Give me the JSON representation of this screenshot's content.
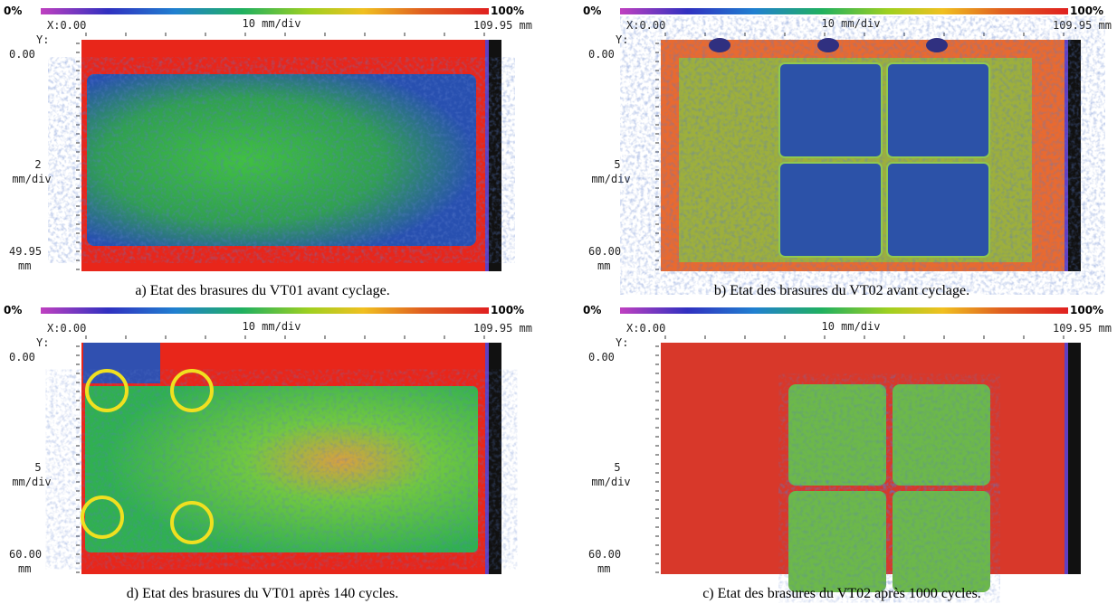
{
  "panels": [
    {
      "colorbar_min": "0%",
      "colorbar_max": "100%",
      "x_start": "X:0.00",
      "x_scale": "10 mm/div",
      "x_end": "109.95 mm",
      "y_label": "Y:",
      "y_start": "0.00",
      "y_scale_value": "2",
      "y_scale_unit": "mm/div",
      "y_end": "49.95",
      "y_end_unit": "mm",
      "caption": "a) Etat des brasures du VT01 avant cyclage."
    },
    {
      "colorbar_min": "0%",
      "colorbar_max": "100%",
      "x_start": "X:0.00",
      "x_scale": "10 mm/div",
      "x_end": "109.95 mm",
      "y_label": "Y:",
      "y_start": "0.00",
      "y_scale_value": "5",
      "y_scale_unit": "mm/div",
      "y_end": "60.00",
      "y_end_unit": "mm",
      "caption": "b) Etat des brasures du VT02 avant cyclage."
    },
    {
      "colorbar_min": "0%",
      "colorbar_max": "100%",
      "x_start": "X:0.00",
      "x_scale": "10 mm/div",
      "x_end": "109.95 mm",
      "y_label": "Y:",
      "y_start": "0.00",
      "y_scale_value": "5",
      "y_scale_unit": "mm/div",
      "y_end": "60.00",
      "y_end_unit": "mm",
      "caption": "d) Etat des brasures du VT01 après 140 cycles."
    },
    {
      "colorbar_min": "0%",
      "colorbar_max": "100%",
      "x_start": "X:0.00",
      "x_scale": "10 mm/div",
      "x_end": "109.95 mm",
      "y_label": "Y:",
      "y_start": "0.00",
      "y_scale_value": "5",
      "y_scale_unit": "mm/div",
      "y_end": "60.00",
      "y_end_unit": "mm",
      "caption": "c) Etat des brasures du VT02 après 1000 cycles."
    }
  ]
}
